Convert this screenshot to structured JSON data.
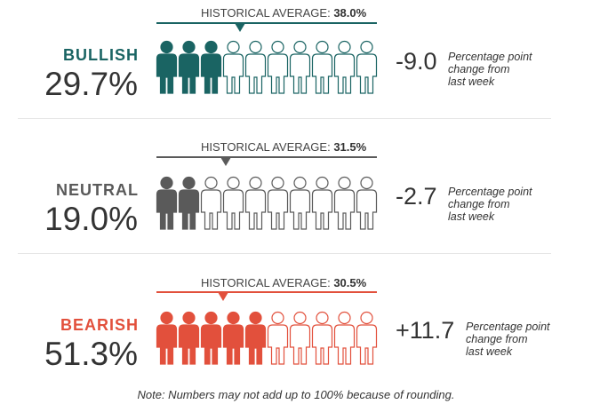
{
  "chart_data": {
    "type": "pictograph",
    "unit_icon": "person-icon",
    "icons_per_row": 10,
    "series": [
      {
        "sentiment_label": "BULLISH",
        "percent": 29.7,
        "percent_label": "29.7%",
        "historical_average_label": "HISTORICAL AVERAGE:",
        "historical_average_value": 38.0,
        "historical_average_text": "38.0%",
        "change_value": -9.0,
        "change_text": "-9.0",
        "change_note_line1": "Percentage point",
        "change_note_line2": "change from",
        "change_note_line3": "last week",
        "color": "#1a6463"
      },
      {
        "sentiment_label": "NEUTRAL",
        "percent": 19.0,
        "percent_label": "19.0%",
        "historical_average_label": "HISTORICAL AVERAGE:",
        "historical_average_value": 31.5,
        "historical_average_text": "31.5%",
        "change_value": -2.7,
        "change_text": "-2.7",
        "change_note_line1": "Percentage point",
        "change_note_line2": "change from",
        "change_note_line3": "last week",
        "color": "#5a5a5a"
      },
      {
        "sentiment_label": "BEARISH",
        "percent": 51.3,
        "percent_label": "51.3%",
        "historical_average_label": "HISTORICAL AVERAGE:",
        "historical_average_value": 30.5,
        "historical_average_text": "30.5%",
        "change_value": 11.7,
        "change_text": "+11.7",
        "change_note_line1": "Percentage point",
        "change_note_line2": "change from",
        "change_note_line3": "last week",
        "color": "#e2503c"
      }
    ],
    "note": "Note: Numbers may not add up to 100% because of rounding."
  }
}
